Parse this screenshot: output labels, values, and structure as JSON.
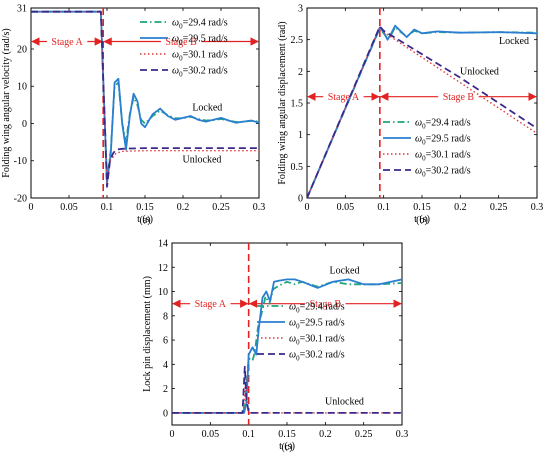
{
  "chart_data": [
    {
      "type": "line",
      "panel": "(a)",
      "xlabel": "t (s)",
      "ylabel": "Folding wing angular velocity (rad/s)",
      "xlim": [
        0,
        0.3
      ],
      "ylim": [
        -20,
        31
      ],
      "xticks": [
        0,
        0.05,
        0.1,
        0.15,
        0.2,
        0.25,
        0.3
      ],
      "xtick_labels": [
        "0",
        "0.05",
        "0.1",
        "0.15",
        "0.2",
        "0.25",
        "0.3"
      ],
      "yticks": [
        -20,
        -10,
        0,
        10,
        20,
        31
      ],
      "ytick_labels": [
        "-20",
        "-10",
        "0",
        "10",
        "20",
        "31"
      ],
      "grid": false,
      "legend_placement": "top-right",
      "stage_boundary_x": 0.095,
      "stages": [
        {
          "label": "Stage A",
          "from": 0,
          "to": 0.095,
          "y": 22
        },
        {
          "label": "Stage B",
          "from": 0.095,
          "to": 0.3,
          "y": 22
        }
      ],
      "annotations": [
        {
          "text": "Locked",
          "x": 0.232,
          "y": 3.5
        },
        {
          "text": "Unlocked",
          "x": 0.225,
          "y": -10.5
        }
      ],
      "series": [
        {
          "legend_symbol": "ω",
          "legend_sub": "0",
          "legend_value": "=29.4 rad/s",
          "color": "#1fa57a",
          "style": "dashdot",
          "width": 1.8,
          "x": [
            0,
            0.092,
            0.095,
            0.1,
            0.105,
            0.11,
            0.115,
            0.12,
            0.125,
            0.13,
            0.135,
            0.14,
            0.145,
            0.15,
            0.16,
            0.17,
            0.18,
            0.19,
            0.2,
            0.21,
            0.22,
            0.23,
            0.24,
            0.25,
            0.26,
            0.27,
            0.28,
            0.29,
            0.3
          ],
          "y": [
            30,
            30,
            12,
            -15,
            -7,
            10,
            11,
            0,
            -5,
            2.5,
            7,
            5,
            1,
            0,
            2,
            3.5,
            2.2,
            1.4,
            1.4,
            1.8,
            1.2,
            0.8,
            0.9,
            1.2,
            0.8,
            0.4,
            0.5,
            0.7,
            0.5
          ]
        },
        {
          "legend_symbol": "ω",
          "legend_sub": "0",
          "legend_value": "=29.5 rad/s",
          "color": "#2a7fd1",
          "style": "solid",
          "width": 1.8,
          "x": [
            0,
            0.092,
            0.095,
            0.1,
            0.105,
            0.11,
            0.115,
            0.12,
            0.125,
            0.13,
            0.135,
            0.14,
            0.145,
            0.15,
            0.16,
            0.17,
            0.18,
            0.19,
            0.2,
            0.21,
            0.22,
            0.23,
            0.24,
            0.25,
            0.26,
            0.27,
            0.28,
            0.29,
            0.3
          ],
          "y": [
            30,
            30,
            12,
            -16,
            -8,
            11,
            12,
            0,
            -7,
            2,
            8,
            6,
            0,
            -1,
            2.5,
            4,
            2,
            1,
            1.5,
            2,
            1,
            0.5,
            1,
            1.5,
            0.8,
            0.2,
            0.5,
            0.8,
            0.2
          ]
        },
        {
          "legend_symbol": "ω",
          "legend_sub": "0",
          "legend_value": "=30.1 rad/s",
          "color": "#e03a3a",
          "style": "dotted",
          "width": 1.4,
          "x": [
            0,
            0.092,
            0.095,
            0.1,
            0.104,
            0.108,
            0.112,
            0.12,
            0.13,
            0.15,
            0.2,
            0.25,
            0.3
          ],
          "y": [
            30,
            30,
            12,
            -16,
            -10,
            -9,
            -8,
            -7.5,
            -7.4,
            -7.3,
            -7.3,
            -7.3,
            -7.3
          ]
        },
        {
          "legend_symbol": "ω",
          "legend_sub": "0",
          "legend_value": "=30.2 rad/s",
          "color": "#3b2a8c",
          "style": "dashed",
          "width": 1.8,
          "x": [
            0,
            0.092,
            0.095,
            0.1,
            0.104,
            0.108,
            0.112,
            0.12,
            0.13,
            0.15,
            0.2,
            0.25,
            0.3
          ],
          "y": [
            30,
            30,
            12,
            -17,
            -10,
            -8,
            -7,
            -6.8,
            -6.7,
            -6.6,
            -6.6,
            -6.6,
            -6.6
          ]
        }
      ]
    },
    {
      "type": "line",
      "panel": "(b)",
      "xlabel": "t (s)",
      "ylabel": "Folding wing angular displacement (rad)",
      "xlim": [
        0,
        0.3
      ],
      "ylim": [
        0,
        3
      ],
      "xticks": [
        0,
        0.05,
        0.1,
        0.15,
        0.2,
        0.25,
        0.3
      ],
      "xtick_labels": [
        "0",
        "0.05",
        "0.1",
        "0.15",
        "0.2",
        "0.25",
        "0.3"
      ],
      "yticks": [
        0,
        0.5,
        1,
        1.5,
        2,
        2.5,
        3
      ],
      "ytick_labels": [
        "0",
        "0.5",
        "1",
        "1.5",
        "2",
        "2.5",
        "3"
      ],
      "grid": false,
      "legend_placement": "bottom-right",
      "stage_boundary_x": 0.095,
      "stages": [
        {
          "label": "Stage A",
          "from": 0,
          "to": 0.095,
          "y": 1.6
        },
        {
          "label": "Stage B",
          "from": 0.095,
          "to": 0.3,
          "y": 1.6
        }
      ],
      "annotations": [
        {
          "text": "Locked",
          "x": 0.27,
          "y": 2.43
        },
        {
          "text": "Unlocked",
          "x": 0.225,
          "y": 1.95
        }
      ],
      "series": [
        {
          "legend_symbol": "ω",
          "legend_sub": "0",
          "legend_value": "=29.4 rad/s",
          "color": "#1fa57a",
          "style": "dashdot",
          "width": 1.8,
          "x": [
            0,
            0.095,
            0.1,
            0.105,
            0.11,
            0.115,
            0.12,
            0.13,
            0.14,
            0.15,
            0.17,
            0.2,
            0.25,
            0.3
          ],
          "y": [
            0,
            2.68,
            2.6,
            2.52,
            2.58,
            2.7,
            2.64,
            2.55,
            2.64,
            2.6,
            2.62,
            2.61,
            2.62,
            2.61
          ]
        },
        {
          "legend_symbol": "ω",
          "legend_sub": "0",
          "legend_value": "=29.5 rad/s",
          "color": "#2a7fd1",
          "style": "solid",
          "width": 1.8,
          "x": [
            0,
            0.095,
            0.1,
            0.105,
            0.11,
            0.115,
            0.12,
            0.13,
            0.14,
            0.15,
            0.17,
            0.2,
            0.25,
            0.3
          ],
          "y": [
            0,
            2.69,
            2.62,
            2.5,
            2.6,
            2.72,
            2.66,
            2.54,
            2.66,
            2.6,
            2.63,
            2.61,
            2.62,
            2.6
          ]
        },
        {
          "legend_symbol": "ω",
          "legend_sub": "0",
          "legend_value": "=30.1 rad/s",
          "color": "#e03a3a",
          "style": "dotted",
          "width": 1.4,
          "x": [
            0,
            0.095,
            0.1,
            0.15,
            0.2,
            0.25,
            0.3
          ],
          "y": [
            0,
            2.7,
            2.62,
            2.22,
            1.82,
            1.42,
            1.02
          ]
        },
        {
          "legend_symbol": "ω",
          "legend_sub": "0",
          "legend_value": "=30.2 rad/s",
          "color": "#3b2a8c",
          "style": "dashed",
          "width": 1.8,
          "x": [
            0,
            0.095,
            0.1,
            0.15,
            0.2,
            0.25,
            0.3
          ],
          "y": [
            0,
            2.71,
            2.64,
            2.27,
            1.9,
            1.5,
            1.1
          ]
        }
      ]
    },
    {
      "type": "line",
      "panel": "(c)",
      "xlabel": "t (s)",
      "ylabel": "Lock pin displacement (mm)",
      "xlim": [
        0,
        0.3
      ],
      "ylim": [
        -1,
        14
      ],
      "xticks": [
        0,
        0.05,
        0.1,
        0.15,
        0.2,
        0.25,
        0.3
      ],
      "xtick_labels": [
        "0",
        "0.05",
        "0.1",
        "0.15",
        "0.2",
        "0.25",
        "0.3"
      ],
      "yticks": [
        0,
        2,
        4,
        6,
        8,
        10,
        12,
        14
      ],
      "ytick_labels": [
        "0",
        "2",
        "4",
        "6",
        "8",
        "10",
        "12",
        "14"
      ],
      "grid": false,
      "legend_placement": "right",
      "stage_boundary_x": 0.1,
      "stages": [
        {
          "label": "Stage A",
          "from": 0,
          "to": 0.1,
          "y": 9
        },
        {
          "label": "Stage B",
          "from": 0.1,
          "to": 0.3,
          "y": 9
        }
      ],
      "annotations": [
        {
          "text": "Locked",
          "x": 0.225,
          "y": 11.5
        },
        {
          "text": "Unlocked",
          "x": 0.225,
          "y": 0.7
        }
      ],
      "series": [
        {
          "legend_symbol": "ω",
          "legend_sub": "0",
          "legend_value": "=29.4 rad/s",
          "color": "#1fa57a",
          "style": "dashdot",
          "width": 1.8,
          "x": [
            0,
            0.092,
            0.095,
            0.1,
            0.105,
            0.108,
            0.112,
            0.118,
            0.122,
            0.127,
            0.132,
            0.14,
            0.15,
            0.16,
            0.17,
            0.19,
            0.21,
            0.23,
            0.25,
            0.27,
            0.3
          ],
          "y": [
            0,
            0,
            0.5,
            4.5,
            4.3,
            5,
            7,
            8.5,
            9.6,
            9,
            10.2,
            10.5,
            10.8,
            10.6,
            10.8,
            10.4,
            10.8,
            10.6,
            10.6,
            10.6,
            10.7
          ]
        },
        {
          "legend_symbol": "ω",
          "legend_sub": "0",
          "legend_value": "=29.5 rad/s",
          "color": "#2a7fd1",
          "style": "solid",
          "width": 1.8,
          "x": [
            0,
            0.094,
            0.097,
            0.1,
            0.105,
            0.11,
            0.113,
            0.118,
            0.123,
            0.128,
            0.133,
            0.14,
            0.15,
            0.16,
            0.17,
            0.19,
            0.21,
            0.23,
            0.25,
            0.27,
            0.3
          ],
          "y": [
            0,
            0,
            0.8,
            4.8,
            5.4,
            4.8,
            6.8,
            9.5,
            10,
            9.2,
            10.8,
            10.9,
            11,
            11,
            10.8,
            10.3,
            10.8,
            11,
            10.6,
            10.6,
            11
          ]
        },
        {
          "legend_symbol": "ω",
          "legend_sub": "0",
          "legend_value": "=30.1 rad/s",
          "color": "#e03a3a",
          "style": "dotted",
          "width": 1.4,
          "x": [
            0,
            0.093,
            0.096,
            0.098,
            0.1,
            0.3
          ],
          "y": [
            0,
            0,
            2.8,
            1,
            0,
            0
          ]
        },
        {
          "legend_symbol": "ω",
          "legend_sub": "0",
          "legend_value": "=30.2 rad/s",
          "color": "#3b2a8c",
          "style": "dashed",
          "width": 1.8,
          "x": [
            0,
            0.092,
            0.095,
            0.097,
            0.1,
            0.3
          ],
          "y": [
            0,
            0,
            3.8,
            1.2,
            0,
            0
          ]
        }
      ]
    }
  ]
}
